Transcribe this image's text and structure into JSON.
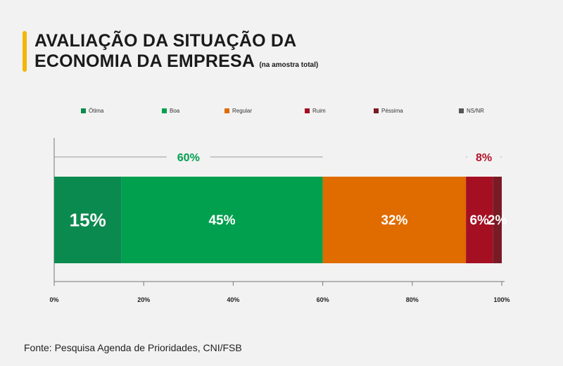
{
  "title": {
    "line1": "AVALIAÇÃO DA SITUAÇÃO DA",
    "line2": "ECONOMIA DA EMPRESA",
    "note": "(na amostra total)"
  },
  "source": "Fonte: Pesquisa Agenda de Prioridades, CNI/FSB",
  "colors": {
    "accent": "#f2b707",
    "good_group": "#00a04f",
    "bad_group": "#b5122b"
  },
  "chart_data": {
    "type": "bar",
    "orientation": "horizontal",
    "stacked": true,
    "categories": [
      ""
    ],
    "series": [
      {
        "name": "Ótima",
        "values": [
          15
        ],
        "label": "15%",
        "color": "#0b8a4f"
      },
      {
        "name": "Boa",
        "values": [
          45
        ],
        "label": "45%",
        "color": "#00a04f"
      },
      {
        "name": "Regular",
        "values": [
          32
        ],
        "label": "32%",
        "color": "#e06c00"
      },
      {
        "name": "Ruim",
        "values": [
          6
        ],
        "label": "6%",
        "color": "#a50f22"
      },
      {
        "name": "Péssima",
        "values": [
          2
        ],
        "label": "2%",
        "color": "#7a1a24"
      },
      {
        "name": "NS/NR",
        "values": [
          0
        ],
        "label": "",
        "color": "#555555"
      }
    ],
    "x_ticks": [
      "0%",
      "20%",
      "40%",
      "60%",
      "80%",
      "100%"
    ],
    "xlim": [
      0,
      100
    ],
    "groups": [
      {
        "label": "60%",
        "range": [
          0,
          60
        ],
        "color": "#00a04f"
      },
      {
        "label": "8%",
        "range": [
          92,
          100
        ],
        "color": "#b5122b"
      }
    ],
    "legend": "top"
  }
}
